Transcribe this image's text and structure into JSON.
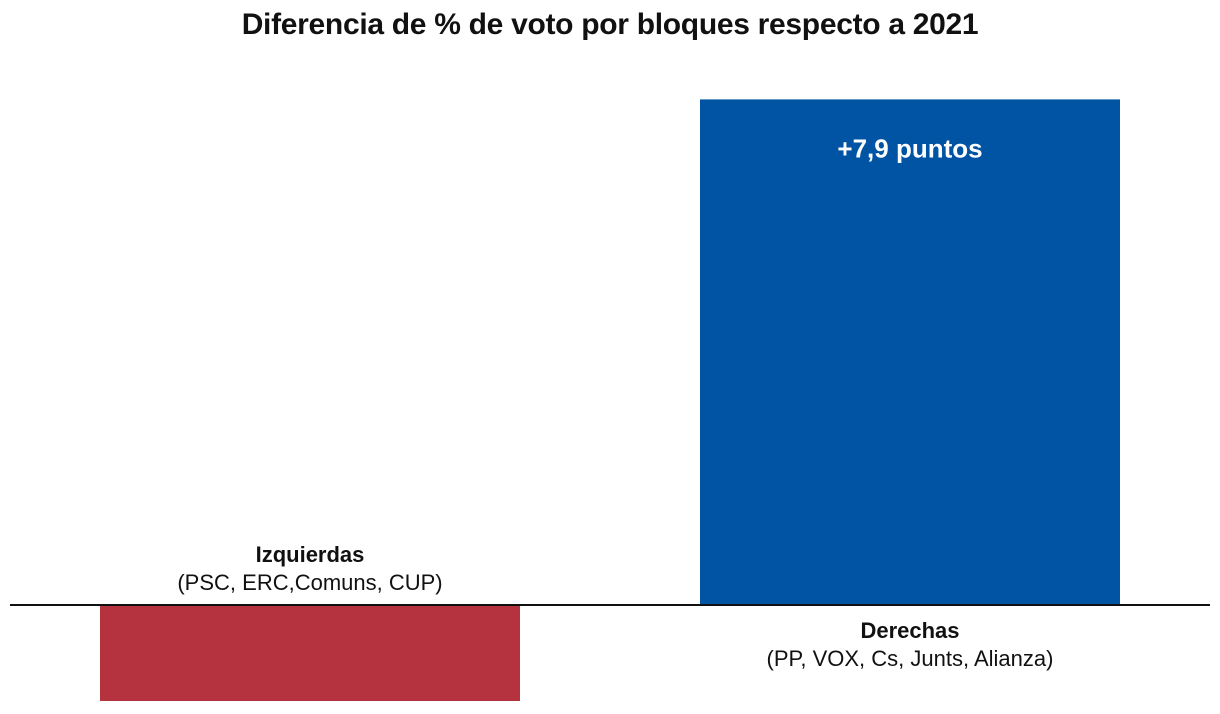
{
  "chart_data": {
    "type": "bar",
    "title": "Diferencia de % de voto por bloques respecto a 2021",
    "xlabel": "",
    "ylabel": "",
    "categories": [
      {
        "name": "Izquierdas",
        "sub": "(PSC, ERC,Comuns, CUP)"
      },
      {
        "name": "Derechas",
        "sub": "(PP, VOX, Cs, Junts, Alianza)"
      }
    ],
    "values": [
      -1.5,
      7.9
    ],
    "data_labels": [
      "",
      "+7,9 puntos"
    ],
    "colors": [
      "#b5333f",
      "#0054a3"
    ],
    "label_color": "#ffffff",
    "ylim": [
      -1.5,
      8.0
    ],
    "grid": false,
    "legend": "none"
  }
}
